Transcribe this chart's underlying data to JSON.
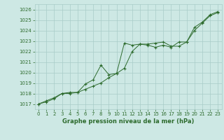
{
  "title": "Graphe pression niveau de la mer (hPa)",
  "background_color": "#cde8e4",
  "grid_color": "#a8ccc8",
  "line_color": "#2d6b2d",
  "xlim": [
    -0.5,
    23.5
  ],
  "ylim": [
    1016.5,
    1026.5
  ],
  "yticks": [
    1017,
    1018,
    1019,
    1020,
    1021,
    1022,
    1023,
    1024,
    1025,
    1026
  ],
  "xticks": [
    0,
    1,
    2,
    3,
    4,
    5,
    6,
    7,
    8,
    9,
    10,
    11,
    12,
    13,
    14,
    15,
    16,
    17,
    18,
    19,
    20,
    21,
    22,
    23
  ],
  "series1_x": [
    0,
    1,
    2,
    3,
    4,
    5,
    6,
    7,
    8,
    9,
    10,
    11,
    12,
    13,
    14,
    15,
    16,
    17,
    18,
    19,
    20,
    21,
    22,
    23
  ],
  "series1_y": [
    1017.0,
    1017.2,
    1017.5,
    1018.0,
    1018.0,
    1018.1,
    1018.4,
    1018.7,
    1019.0,
    1019.5,
    1019.9,
    1020.4,
    1022.0,
    1022.7,
    1022.7,
    1022.8,
    1022.9,
    1022.5,
    1022.5,
    1022.9,
    1024.0,
    1024.7,
    1025.4,
    1025.7
  ],
  "series2_x": [
    0,
    1,
    2,
    3,
    4,
    5,
    6,
    7,
    8,
    9,
    10,
    11,
    12,
    13,
    14,
    15,
    16,
    17,
    18,
    19,
    20,
    21,
    22,
    23
  ],
  "series2_y": [
    1017.0,
    1017.3,
    1017.6,
    1018.0,
    1018.1,
    1018.1,
    1018.9,
    1019.3,
    1020.7,
    1019.8,
    1019.9,
    1022.8,
    1022.6,
    1022.7,
    1022.6,
    1022.4,
    1022.6,
    1022.4,
    1022.9,
    1022.9,
    1024.3,
    1024.8,
    1025.5,
    1025.8
  ],
  "tick_fontsize": 5.0,
  "xlabel_fontsize": 6.0
}
